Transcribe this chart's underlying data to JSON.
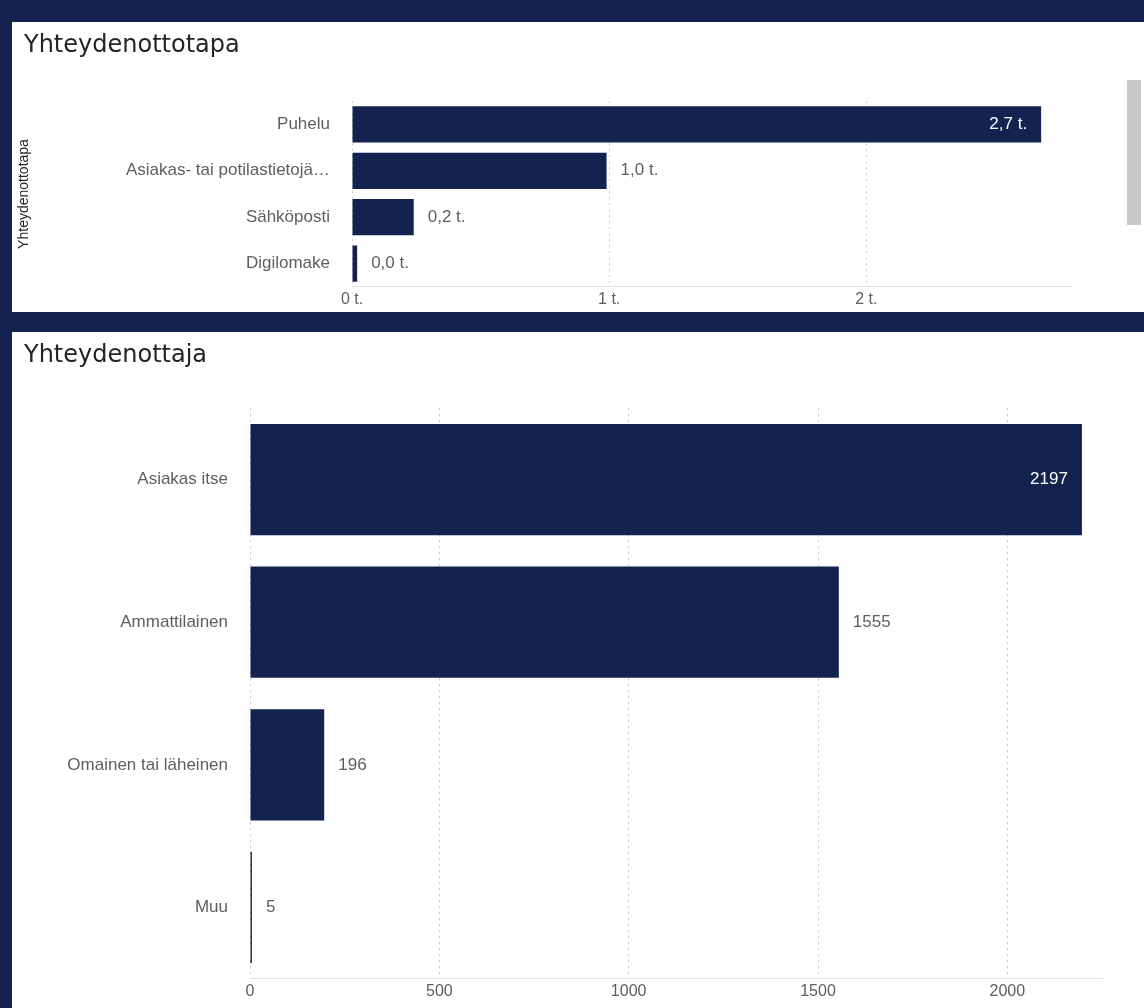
{
  "chart_data": [
    {
      "type": "bar",
      "title": "Yhteydenottotapa",
      "ylabel": "Yhteydenottotapa",
      "orientation": "horizontal",
      "categories": [
        "Puhelu",
        "Asiakas- tai potilastietojä…",
        "Sähköposti",
        "Digilomake"
      ],
      "values": [
        2.68,
        0.99,
        0.24,
        0.02
      ],
      "color": "#13224f",
      "value_labels": [
        "2,7 t.",
        "1,0 t.",
        "0,2 t.",
        "0,0 t."
      ],
      "xlim": [
        0,
        2.8
      ],
      "xticks": [
        {
          "value": 0,
          "label": "0 t."
        },
        {
          "value": 1,
          "label": "1 t."
        },
        {
          "value": 2,
          "label": "2 t."
        }
      ],
      "grid": "x",
      "legend": false
    },
    {
      "type": "bar",
      "title": "Yhteydenottaja",
      "orientation": "horizontal",
      "categories": [
        "Asiakas itse",
        "Ammattilainen",
        "Omainen tai läheinen",
        "Muu"
      ],
      "values": [
        2197,
        1555,
        196,
        5
      ],
      "color": "#13224f",
      "data_labels": true,
      "xlim": [
        0,
        2250
      ],
      "xticks": [
        0,
        500,
        1000,
        1500,
        2000
      ],
      "grid": "x",
      "legend": false
    }
  ]
}
